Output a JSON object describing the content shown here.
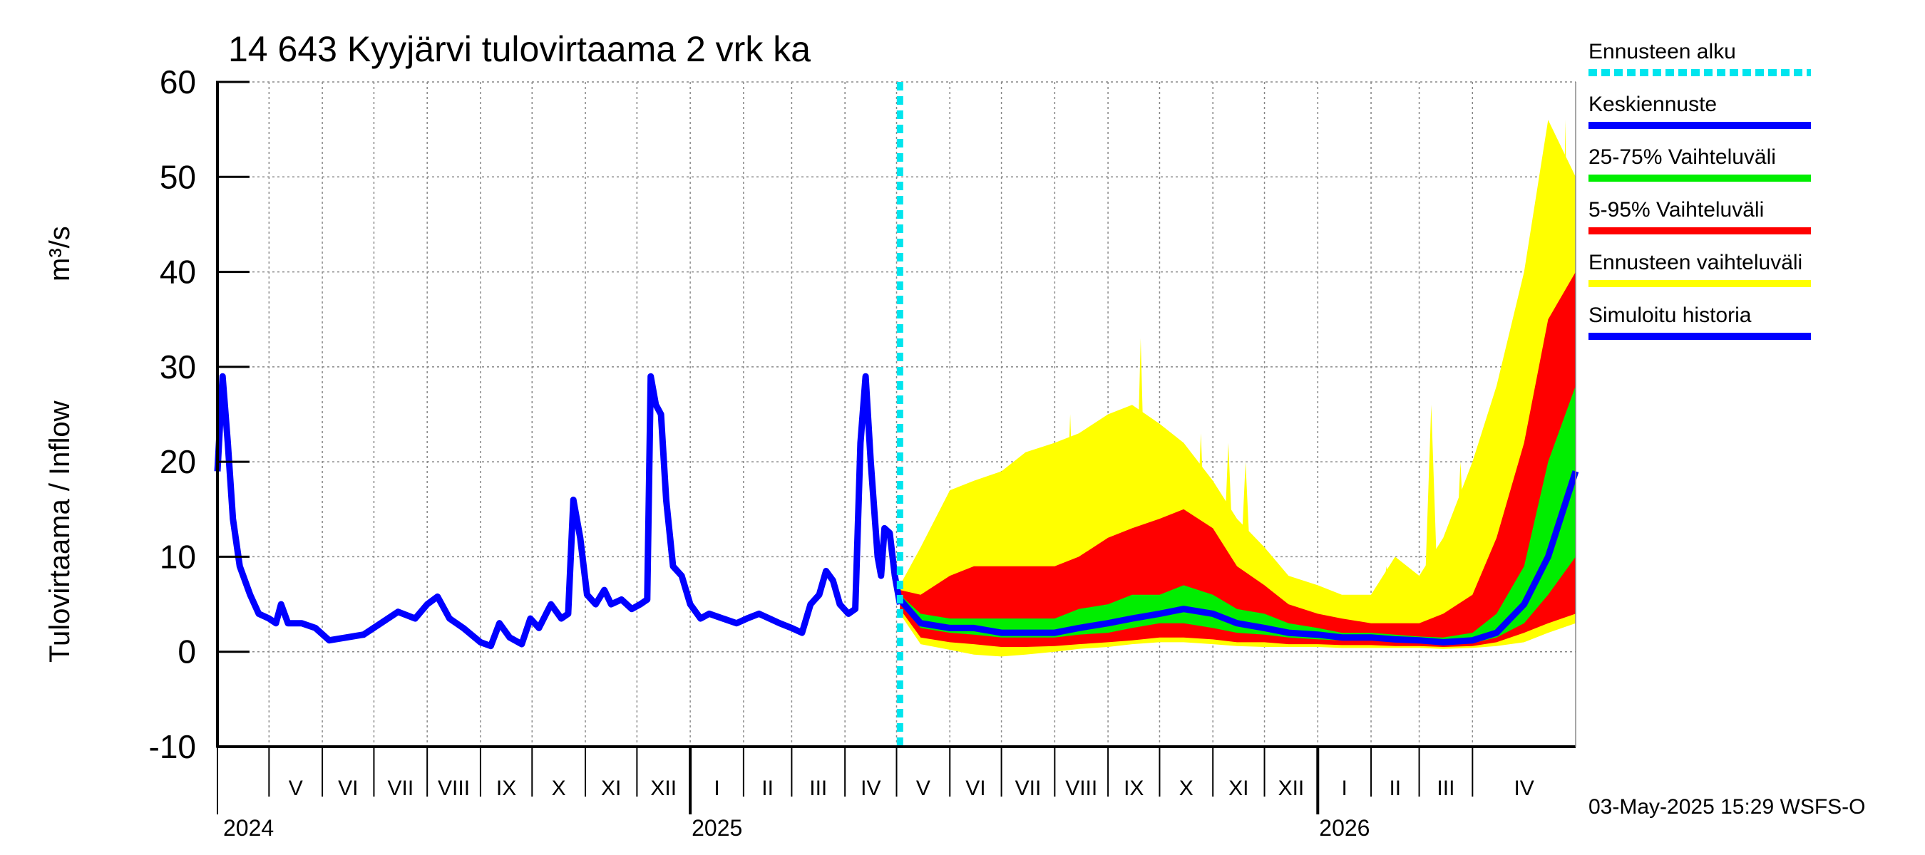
{
  "chart_data": {
    "type": "area",
    "title": "14 643 Kyyjärvi tulovirtaama 2 vrk ka",
    "ylabel": "Tulovirtaama / Inflow",
    "yunit": "m³/s",
    "ylim": [
      -10,
      60
    ],
    "yticks": [
      -10,
      0,
      10,
      20,
      30,
      40,
      50,
      60
    ],
    "grid": true,
    "legend_position": "right",
    "forecast_start": "2025-05-03",
    "xlim": [
      "2024-04-01",
      "2026-05-31"
    ],
    "month_labels": [
      {
        "label": "V",
        "date": "2024-05-01"
      },
      {
        "label": "VI",
        "date": "2024-06-01"
      },
      {
        "label": "VII",
        "date": "2024-07-01"
      },
      {
        "label": "VIII",
        "date": "2024-08-01"
      },
      {
        "label": "IX",
        "date": "2024-09-01"
      },
      {
        "label": "X",
        "date": "2024-10-01"
      },
      {
        "label": "XI",
        "date": "2024-11-01"
      },
      {
        "label": "XII",
        "date": "2024-12-01"
      },
      {
        "label": "I",
        "date": "2025-01-01"
      },
      {
        "label": "II",
        "date": "2025-02-01"
      },
      {
        "label": "III",
        "date": "2025-03-01"
      },
      {
        "label": "IV",
        "date": "2025-04-01"
      },
      {
        "label": "V",
        "date": "2025-05-01"
      },
      {
        "label": "VI",
        "date": "2025-06-01"
      },
      {
        "label": "VII",
        "date": "2025-07-01"
      },
      {
        "label": "VIII",
        "date": "2025-08-01"
      },
      {
        "label": "IX",
        "date": "2025-09-01"
      },
      {
        "label": "X",
        "date": "2025-10-01"
      },
      {
        "label": "XI",
        "date": "2025-11-01"
      },
      {
        "label": "XII",
        "date": "2025-12-01"
      },
      {
        "label": "I",
        "date": "2026-01-01"
      },
      {
        "label": "II",
        "date": "2026-02-01"
      },
      {
        "label": "III",
        "date": "2026-03-01"
      },
      {
        "label": "IV",
        "date": "2026-04-01"
      }
    ],
    "year_labels": [
      {
        "label": "2024",
        "date": "2024-05-01"
      },
      {
        "label": "2025",
        "date": "2025-01-01"
      },
      {
        "label": "2026",
        "date": "2026-01-01"
      }
    ],
    "legend": [
      {
        "label": "Ennusteen alku",
        "color": "#00e5ee",
        "style": "dashed"
      },
      {
        "label": "Keskiennuste",
        "color": "#0000ff",
        "style": "solid"
      },
      {
        "label": "25-75% Vaihteluväli",
        "color": "#00ee00",
        "style": "solid"
      },
      {
        "label": "5-95% Vaihteluväli",
        "color": "#ff0000",
        "style": "solid"
      },
      {
        "label": "Ennusteen vaihteluväli",
        "color": "#ffff00",
        "style": "solid"
      },
      {
        "label": "Simuloitu historia",
        "color": "#0000ff",
        "style": "solid"
      }
    ],
    "history": {
      "name": "Simuloitu historia",
      "color": "#0000ff",
      "points": [
        [
          "2024-04-01",
          19
        ],
        [
          "2024-04-04",
          29
        ],
        [
          "2024-04-07",
          22
        ],
        [
          "2024-04-10",
          14
        ],
        [
          "2024-04-14",
          9
        ],
        [
          "2024-04-20",
          6
        ],
        [
          "2024-04-25",
          4
        ],
        [
          "2024-05-01",
          3.5
        ],
        [
          "2024-05-05",
          3
        ],
        [
          "2024-05-08",
          5
        ],
        [
          "2024-05-12",
          3
        ],
        [
          "2024-05-20",
          3
        ],
        [
          "2024-05-28",
          2.5
        ],
        [
          "2024-06-05",
          1.2
        ],
        [
          "2024-06-15",
          1.5
        ],
        [
          "2024-06-25",
          1.8
        ],
        [
          "2024-07-05",
          3
        ],
        [
          "2024-07-15",
          4.2
        ],
        [
          "2024-07-25",
          3.5
        ],
        [
          "2024-08-01",
          5
        ],
        [
          "2024-08-07",
          5.8
        ],
        [
          "2024-08-14",
          3.5
        ],
        [
          "2024-08-22",
          2.5
        ],
        [
          "2024-09-01",
          1
        ],
        [
          "2024-09-07",
          0.6
        ],
        [
          "2024-09-12",
          3
        ],
        [
          "2024-09-18",
          1.5
        ],
        [
          "2024-09-25",
          0.8
        ],
        [
          "2024-09-30",
          3.5
        ],
        [
          "2024-10-05",
          2.5
        ],
        [
          "2024-10-12",
          5
        ],
        [
          "2024-10-18",
          3.5
        ],
        [
          "2024-10-22",
          4
        ],
        [
          "2024-10-25",
          16
        ],
        [
          "2024-10-29",
          12
        ],
        [
          "2024-11-02",
          6
        ],
        [
          "2024-11-07",
          5
        ],
        [
          "2024-11-12",
          6.5
        ],
        [
          "2024-11-16",
          5
        ],
        [
          "2024-11-22",
          5.5
        ],
        [
          "2024-11-28",
          4.5
        ],
        [
          "2024-12-03",
          5
        ],
        [
          "2024-12-07",
          5.5
        ],
        [
          "2024-12-09",
          29
        ],
        [
          "2024-12-12",
          26
        ],
        [
          "2024-12-15",
          25
        ],
        [
          "2024-12-18",
          16
        ],
        [
          "2024-12-22",
          9
        ],
        [
          "2024-12-27",
          8
        ],
        [
          "2025-01-01",
          5
        ],
        [
          "2025-01-07",
          3.5
        ],
        [
          "2025-01-12",
          4
        ],
        [
          "2025-01-20",
          3.5
        ],
        [
          "2025-01-28",
          3
        ],
        [
          "2025-02-03",
          3.5
        ],
        [
          "2025-02-10",
          4
        ],
        [
          "2025-02-16",
          3.5
        ],
        [
          "2025-02-22",
          3
        ],
        [
          "2025-03-01",
          2.5
        ],
        [
          "2025-03-07",
          2
        ],
        [
          "2025-03-12",
          5
        ],
        [
          "2025-03-17",
          6
        ],
        [
          "2025-03-21",
          8.5
        ],
        [
          "2025-03-25",
          7.5
        ],
        [
          "2025-03-29",
          5
        ],
        [
          "2025-04-03",
          4
        ],
        [
          "2025-04-07",
          4.5
        ],
        [
          "2025-04-10",
          22
        ],
        [
          "2025-04-13",
          29
        ],
        [
          "2025-04-16",
          20
        ],
        [
          "2025-04-20",
          10
        ],
        [
          "2025-04-22",
          8
        ],
        [
          "2025-04-24",
          13
        ],
        [
          "2025-04-27",
          12.5
        ],
        [
          "2025-04-30",
          8
        ],
        [
          "2025-05-03",
          5
        ]
      ]
    },
    "forecast": {
      "dates": [
        "2025-05-03",
        "2025-05-15",
        "2025-06-01",
        "2025-06-15",
        "2025-07-01",
        "2025-07-15",
        "2025-08-01",
        "2025-08-15",
        "2025-09-01",
        "2025-09-15",
        "2025-10-01",
        "2025-10-15",
        "2025-11-01",
        "2025-11-15",
        "2025-12-01",
        "2025-12-15",
        "2026-01-01",
        "2026-01-15",
        "2026-02-01",
        "2026-02-15",
        "2026-03-01",
        "2026-03-15",
        "2026-04-01",
        "2026-04-15",
        "2026-05-01",
        "2026-05-15",
        "2026-05-31"
      ],
      "median": [
        5.5,
        3,
        2.5,
        2.5,
        2,
        2,
        2,
        2.5,
        3,
        3.5,
        4,
        4.5,
        4,
        3,
        2.5,
        2,
        1.8,
        1.5,
        1.5,
        1.3,
        1.2,
        1,
        1.2,
        2,
        5,
        10,
        19
      ],
      "p25": [
        5,
        2.5,
        2,
        1.8,
        1.5,
        1.5,
        1.5,
        1.8,
        2,
        2.5,
        3,
        3,
        2.5,
        2,
        1.8,
        1.5,
        1.3,
        1.2,
        1.2,
        1,
        1,
        0.8,
        0.9,
        1.5,
        3,
        6,
        10
      ],
      "p75": [
        6,
        4,
        3.5,
        3.5,
        3.5,
        3.5,
        3.5,
        4.5,
        5,
        6,
        6,
        7,
        6,
        4.5,
        4,
        3,
        2.5,
        2,
        2,
        1.8,
        1.6,
        1.5,
        2,
        4,
        9,
        20,
        28
      ],
      "p05": [
        4.5,
        1.5,
        1,
        0.8,
        0.5,
        0.5,
        0.6,
        0.8,
        1,
        1.2,
        1.5,
        1.5,
        1.3,
        1,
        1,
        0.8,
        0.8,
        0.7,
        0.7,
        0.6,
        0.6,
        0.5,
        0.6,
        1,
        2,
        3,
        4
      ],
      "p95": [
        6.5,
        6,
        8,
        9,
        9,
        9,
        9,
        10,
        12,
        13,
        14,
        15,
        13,
        9,
        7,
        5,
        4,
        3.5,
        3,
        3,
        3,
        4,
        6,
        12,
        22,
        35,
        40
      ],
      "min": [
        4,
        0.8,
        0.2,
        -0.3,
        -0.5,
        -0.3,
        0,
        0.3,
        0.5,
        0.8,
        1,
        1,
        0.8,
        0.6,
        0.5,
        0.5,
        0.5,
        0.4,
        0.4,
        0.4,
        0.4,
        0.3,
        0.4,
        0.6,
        1,
        2,
        3
      ],
      "max": [
        7,
        11,
        17,
        18,
        19,
        21,
        22,
        23,
        25,
        26,
        24,
        22,
        18,
        14,
        11,
        8,
        7,
        6,
        6,
        10,
        8,
        12,
        20,
        28,
        40,
        56,
        50
      ]
    },
    "max_spikes": [
      [
        "2025-06-08",
        17
      ],
      [
        "2025-07-05",
        19
      ],
      [
        "2025-07-25",
        18
      ],
      [
        "2025-08-10",
        25
      ],
      [
        "2025-09-05",
        23
      ],
      [
        "2025-09-20",
        33
      ],
      [
        "2025-10-10",
        19
      ],
      [
        "2025-10-25",
        23
      ],
      [
        "2025-11-10",
        22
      ],
      [
        "2025-11-20",
        20
      ],
      [
        "2026-02-10",
        9
      ],
      [
        "2026-03-08",
        26
      ],
      [
        "2026-03-25",
        20
      ],
      [
        "2026-05-25",
        56
      ]
    ]
  },
  "timestamp": "03-May-2025 15:29 WSFS-O"
}
